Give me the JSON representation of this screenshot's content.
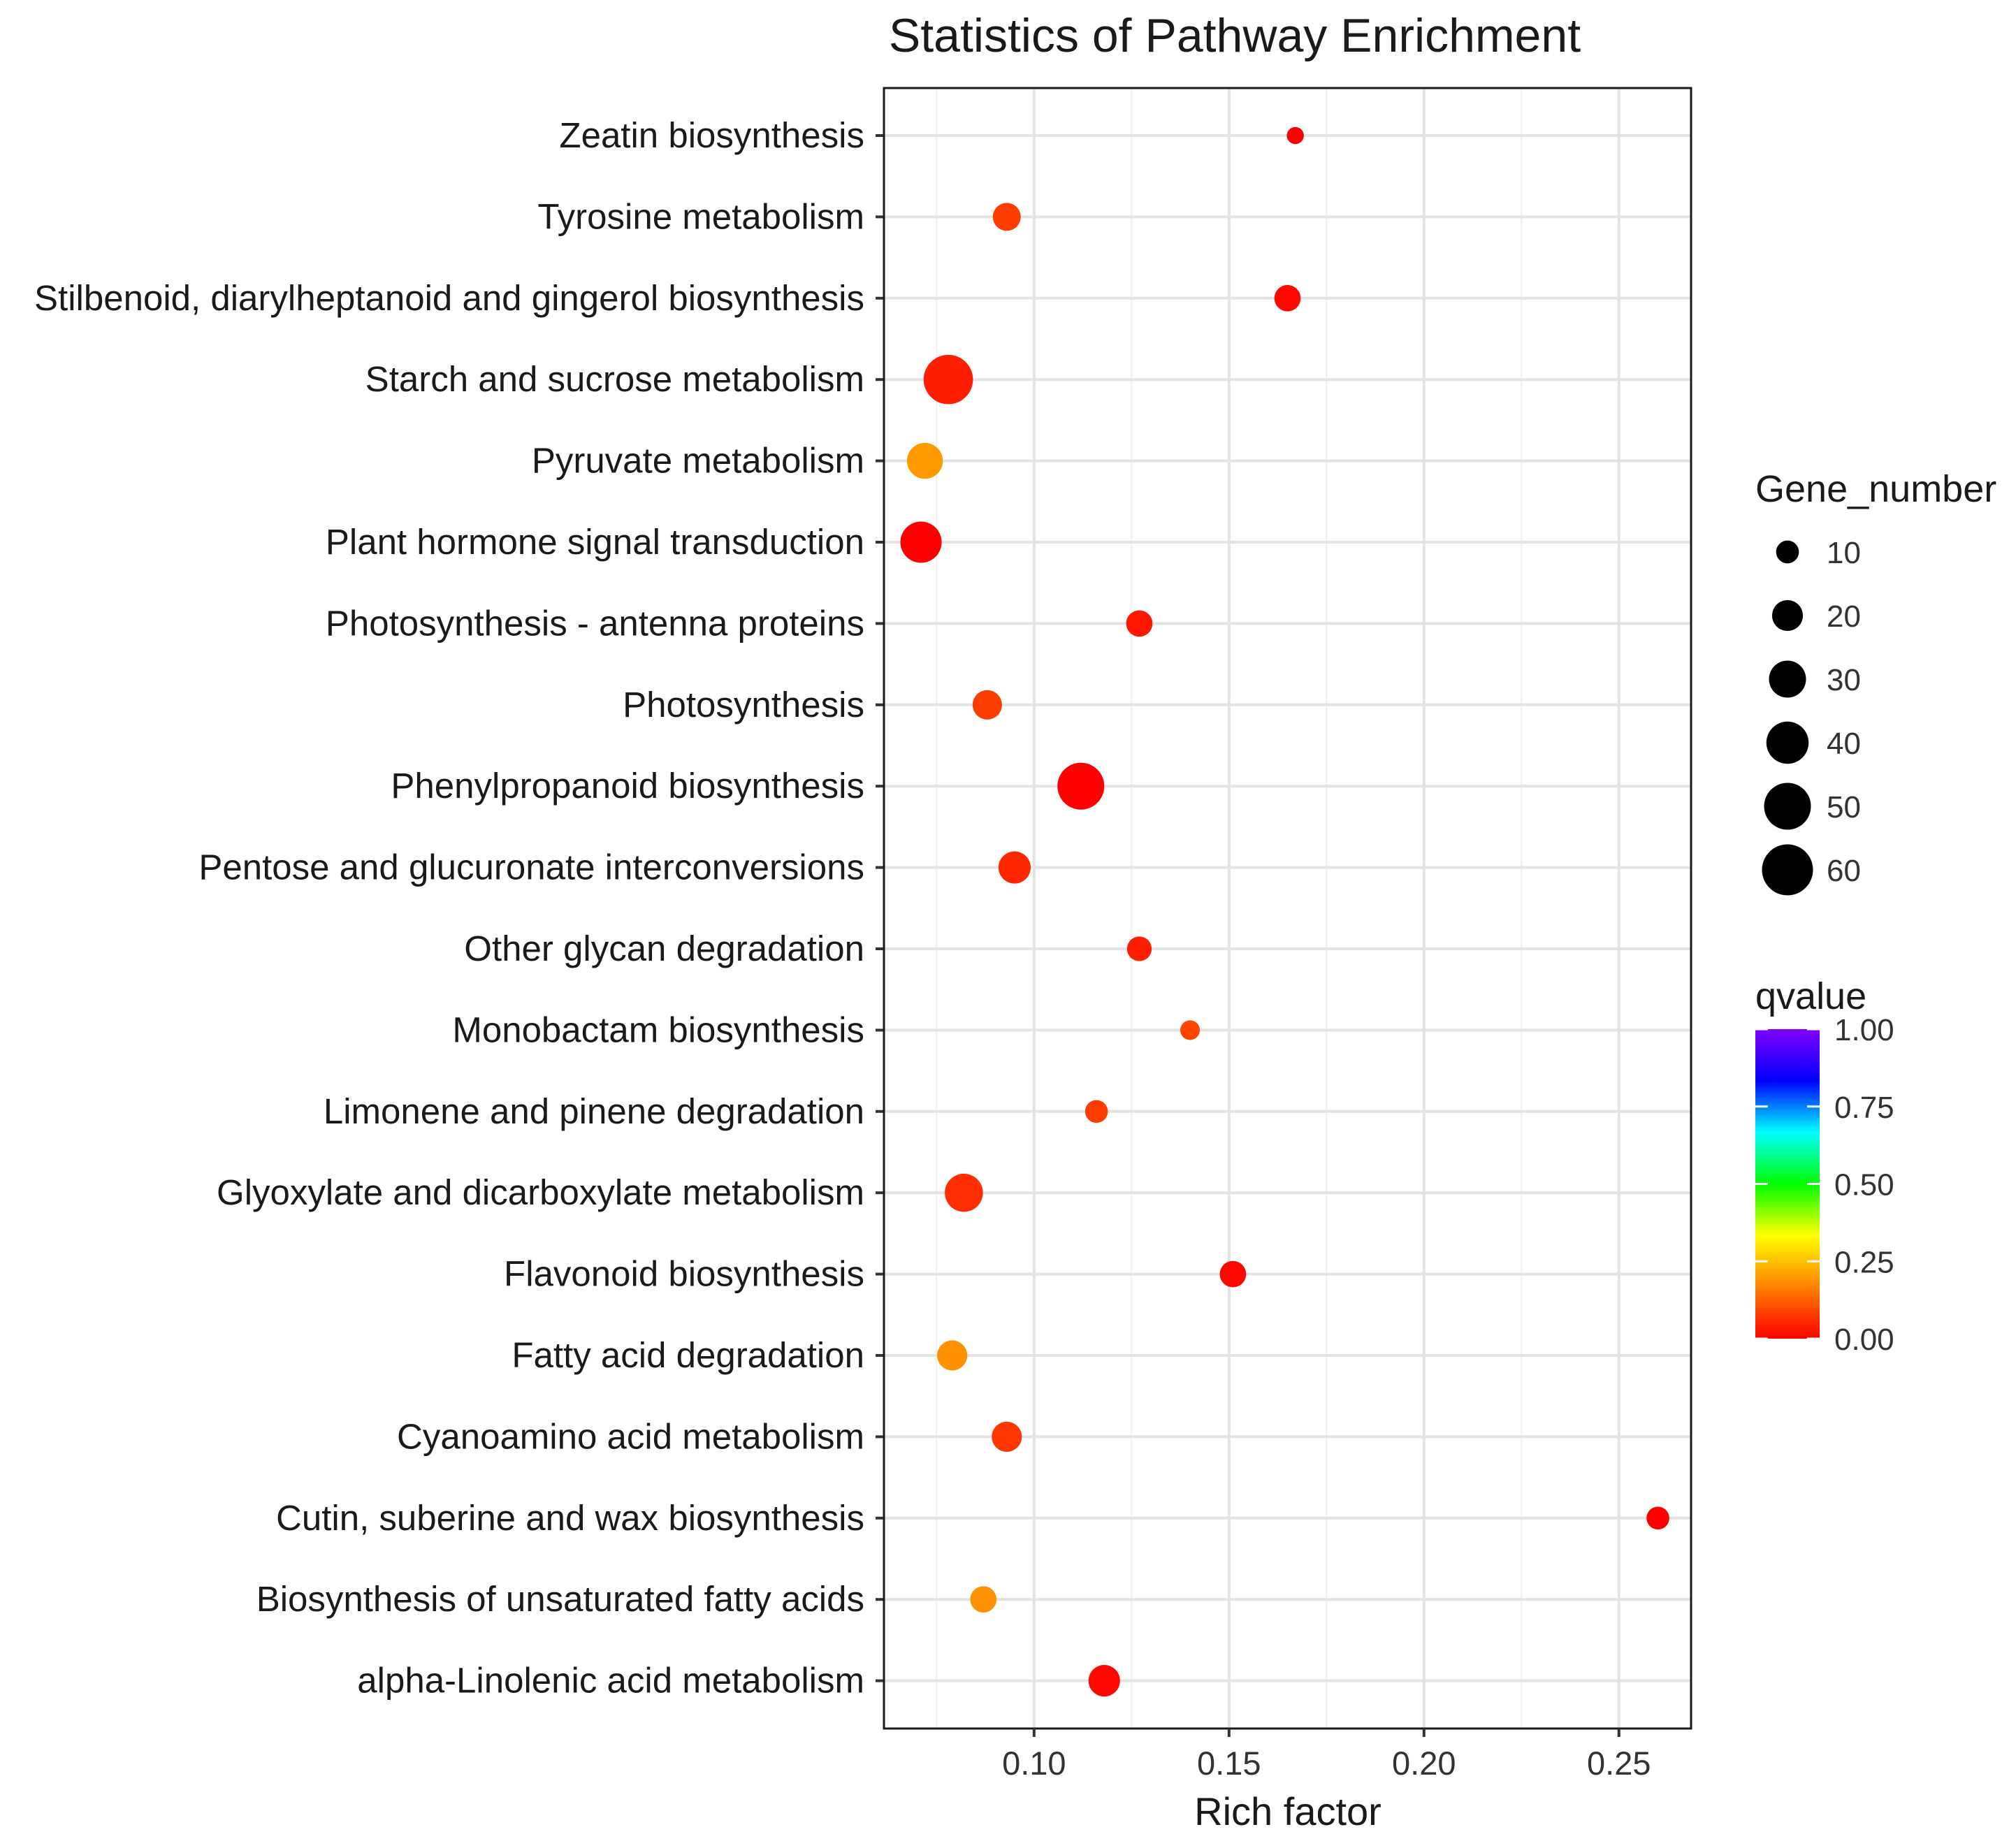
{
  "chart_data": {
    "type": "scatter",
    "title": "Statistics of Pathway Enrichment",
    "xlabel": "Rich factor",
    "ylabel": "",
    "xlim": [
      0.0615,
      0.2685
    ],
    "xticks": [
      0.1,
      0.15,
      0.2,
      0.25
    ],
    "xtick_labels": [
      "0.10",
      "0.15",
      "0.20",
      "0.25"
    ],
    "grid": true,
    "legend_placement": "right",
    "size_legend": {
      "title": "Gene_number",
      "values": [
        10,
        20,
        30,
        40,
        50,
        60
      ],
      "labels": [
        "10",
        "20",
        "30",
        "40",
        "50",
        "60"
      ]
    },
    "color_legend": {
      "title": "qvalue",
      "range": [
        0,
        1
      ],
      "ticks": [
        0,
        0.25,
        0.5,
        0.75,
        1
      ],
      "tick_labels": [
        "0.00",
        "0.25",
        "0.50",
        "0.75",
        "1.00"
      ],
      "colors": [
        "#ff0000",
        "#ff8000",
        "#ffff00",
        "#00ff00",
        "#00ffff",
        "#0000ff",
        "#8000ff"
      ]
    },
    "points": [
      {
        "pathway": "Zeatin biosynthesis",
        "rich_factor": 0.167,
        "gene_number": 5,
        "qvalue": 0.0
      },
      {
        "pathway": "Tyrosine metabolism",
        "rich_factor": 0.093,
        "gene_number": 16,
        "qvalue": 0.08
      },
      {
        "pathway": "Stilbenoid, diarylheptanoid and gingerol biosynthesis",
        "rich_factor": 0.165,
        "gene_number": 14,
        "qvalue": 0.01
      },
      {
        "pathway": "Starch and sucrose metabolism",
        "rich_factor": 0.078,
        "gene_number": 56,
        "qvalue": 0.04
      },
      {
        "pathway": "Pyruvate metabolism",
        "rich_factor": 0.072,
        "gene_number": 28,
        "qvalue": 0.2
      },
      {
        "pathway": "Plant hormone signal transduction",
        "rich_factor": 0.071,
        "gene_number": 38,
        "qvalue": 0.0
      },
      {
        "pathway": "Photosynthesis - antenna proteins",
        "rich_factor": 0.127,
        "gene_number": 14,
        "qvalue": 0.03
      },
      {
        "pathway": "Photosynthesis",
        "rich_factor": 0.088,
        "gene_number": 18,
        "qvalue": 0.08
      },
      {
        "pathway": "Phenylpropanoid biosynthesis",
        "rich_factor": 0.112,
        "gene_number": 50,
        "qvalue": 0.0
      },
      {
        "pathway": "Pentose and glucuronate interconversions",
        "rich_factor": 0.095,
        "gene_number": 22,
        "qvalue": 0.05
      },
      {
        "pathway": "Other glycan degradation",
        "rich_factor": 0.127,
        "gene_number": 12,
        "qvalue": 0.04
      },
      {
        "pathway": "Monobactam biosynthesis",
        "rich_factor": 0.14,
        "gene_number": 7,
        "qvalue": 0.09
      },
      {
        "pathway": "Limonene and pinene degradation",
        "rich_factor": 0.116,
        "gene_number": 10,
        "qvalue": 0.08
      },
      {
        "pathway": "Glyoxylate and dicarboxylate metabolism",
        "rich_factor": 0.082,
        "gene_number": 32,
        "qvalue": 0.06
      },
      {
        "pathway": "Flavonoid biosynthesis",
        "rich_factor": 0.151,
        "gene_number": 14,
        "qvalue": 0.01
      },
      {
        "pathway": "Fatty acid degradation",
        "rich_factor": 0.079,
        "gene_number": 19,
        "qvalue": 0.19
      },
      {
        "pathway": "Cyanoamino acid metabolism",
        "rich_factor": 0.093,
        "gene_number": 19,
        "qvalue": 0.07
      },
      {
        "pathway": "Cutin, suberine and wax biosynthesis",
        "rich_factor": 0.26,
        "gene_number": 10,
        "qvalue": 0.0
      },
      {
        "pathway": "Biosynthesis of unsaturated fatty acids",
        "rich_factor": 0.087,
        "gene_number": 14,
        "qvalue": 0.19
      },
      {
        "pathway": "alpha-Linolenic acid metabolism",
        "rich_factor": 0.118,
        "gene_number": 21,
        "qvalue": 0.01
      }
    ]
  }
}
